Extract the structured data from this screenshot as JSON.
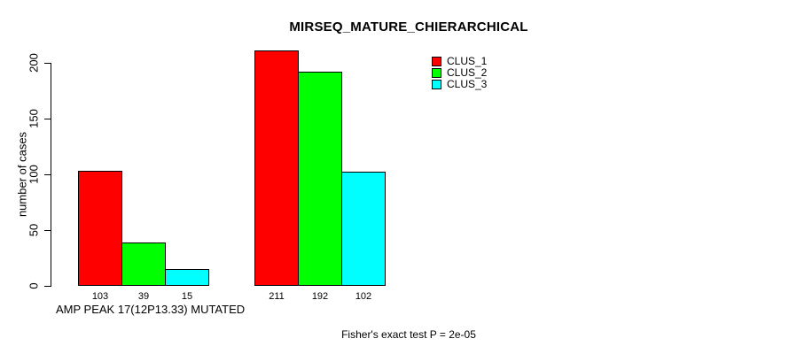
{
  "chart_data": {
    "type": "bar",
    "title": "MIRSEQ_MATURE_CHIERARCHICAL",
    "ylabel": "number of cases",
    "xlabel": "AMP PEAK 17(12P13.33) MUTATED",
    "annotation": "Fisher's exact test P = 2e-05",
    "ylim": [
      0,
      200
    ],
    "yticks": [
      0,
      50,
      100,
      150,
      200
    ],
    "grid": false,
    "legend_position": "top-right",
    "groups": 2,
    "series": [
      {
        "name": "CLUS_1",
        "color": "#ff0000",
        "values": [
          103,
          211
        ]
      },
      {
        "name": "CLUS_2",
        "color": "#00ff00",
        "values": [
          39,
          192
        ]
      },
      {
        "name": "CLUS_3",
        "color": "#00ffff",
        "values": [
          15,
          102
        ]
      }
    ],
    "bar_value_labels_shown": true,
    "colors": {
      "background": "#ffffff",
      "axis": "#000000",
      "text": "#000000"
    }
  }
}
